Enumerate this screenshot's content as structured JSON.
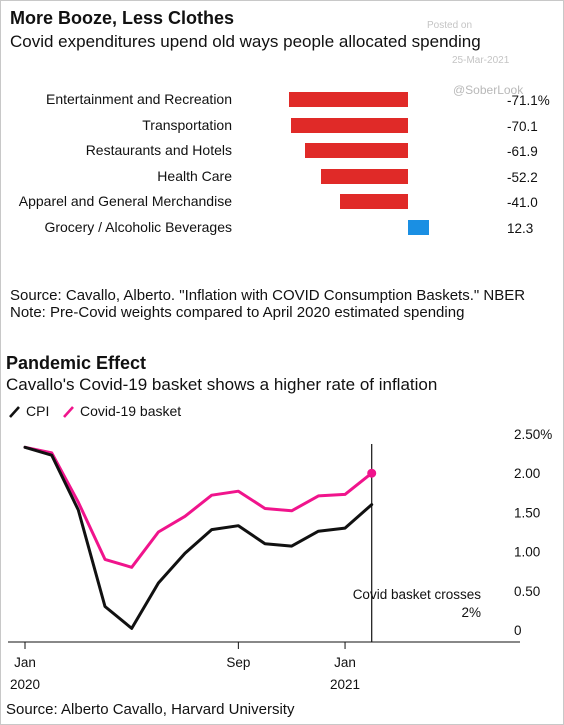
{
  "top": {
    "title": "More Booze, Less Clothes",
    "subtitle": "Covid expenditures upend old ways people allocated spending",
    "source": "Source: Cavallo, Alberto. \"Inflation with COVID Consumption Baskets.\" NBER",
    "note": "Note: Pre-Covid weights compared to April 2020 estimated spending"
  },
  "watermark": {
    "posted": "Posted on",
    "date": "25-Mar-2021",
    "handle": "@SoberLook"
  },
  "bottom": {
    "title": "Pandemic Effect",
    "subtitle": "Cavallo's Covid-19 basket shows a higher rate of inflation",
    "annotation_line1": "Covid basket crosses",
    "annotation_line2": "2%",
    "source": "Source: Alberto Cavallo, Harvard University"
  },
  "colors": {
    "negative": "#e02a28",
    "positive": "#1a8fe3",
    "cpi": "#111111",
    "covid": "#f0148c"
  },
  "chart_data": [
    {
      "type": "bar",
      "categories": [
        "Entertainment and Recreation",
        "Transportation",
        "Restaurants and Hotels",
        "Health Care",
        "Apparel and General Merchandise",
        "Grocery / Alcoholic Beverages"
      ],
      "values": [
        -71.1,
        -70.1,
        -61.9,
        -52.2,
        -41.0,
        12.3
      ],
      "value_labels": [
        "-71.1%",
        "-70.1",
        "-61.9",
        "-52.2",
        "-41.0",
        "12.3"
      ],
      "title": "More Booze, Less Clothes",
      "subtitle": "Covid expenditures upend old ways people allocated spending"
    },
    {
      "type": "line",
      "title": "Pandemic Effect",
      "subtitle": "Cavallo's Covid-19 basket shows a higher rate of inflation",
      "x": [
        "2020-01",
        "2020-02",
        "2020-03",
        "2020-04",
        "2020-05",
        "2020-06",
        "2020-07",
        "2020-08",
        "2020-09",
        "2020-10",
        "2020-11",
        "2020-12",
        "2021-01",
        "2021-02"
      ],
      "series": [
        {
          "name": "CPI",
          "values": [
            2.33,
            2.23,
            1.53,
            0.3,
            0.02,
            0.6,
            0.98,
            1.28,
            1.33,
            1.1,
            1.07,
            1.26,
            1.3,
            1.6
          ]
        },
        {
          "name": "Covid-19 basket",
          "values": [
            2.33,
            2.26,
            1.63,
            0.9,
            0.8,
            1.25,
            1.45,
            1.72,
            1.77,
            1.55,
            1.52,
            1.71,
            1.73,
            2.0
          ]
        }
      ],
      "xticks": [
        {
          "x": "2020-01",
          "month": "Jan",
          "year": "2020"
        },
        {
          "x": "2020-09",
          "month": "Sep",
          "year": ""
        },
        {
          "x": "2021-01",
          "month": "Jan",
          "year": "2021"
        }
      ],
      "yticks": [
        "0",
        "0.50",
        "1.00",
        "1.50",
        "2.00",
        "2.50%"
      ],
      "ylim": [
        0,
        2.5
      ],
      "legend": "top-left",
      "grid": false
    }
  ]
}
